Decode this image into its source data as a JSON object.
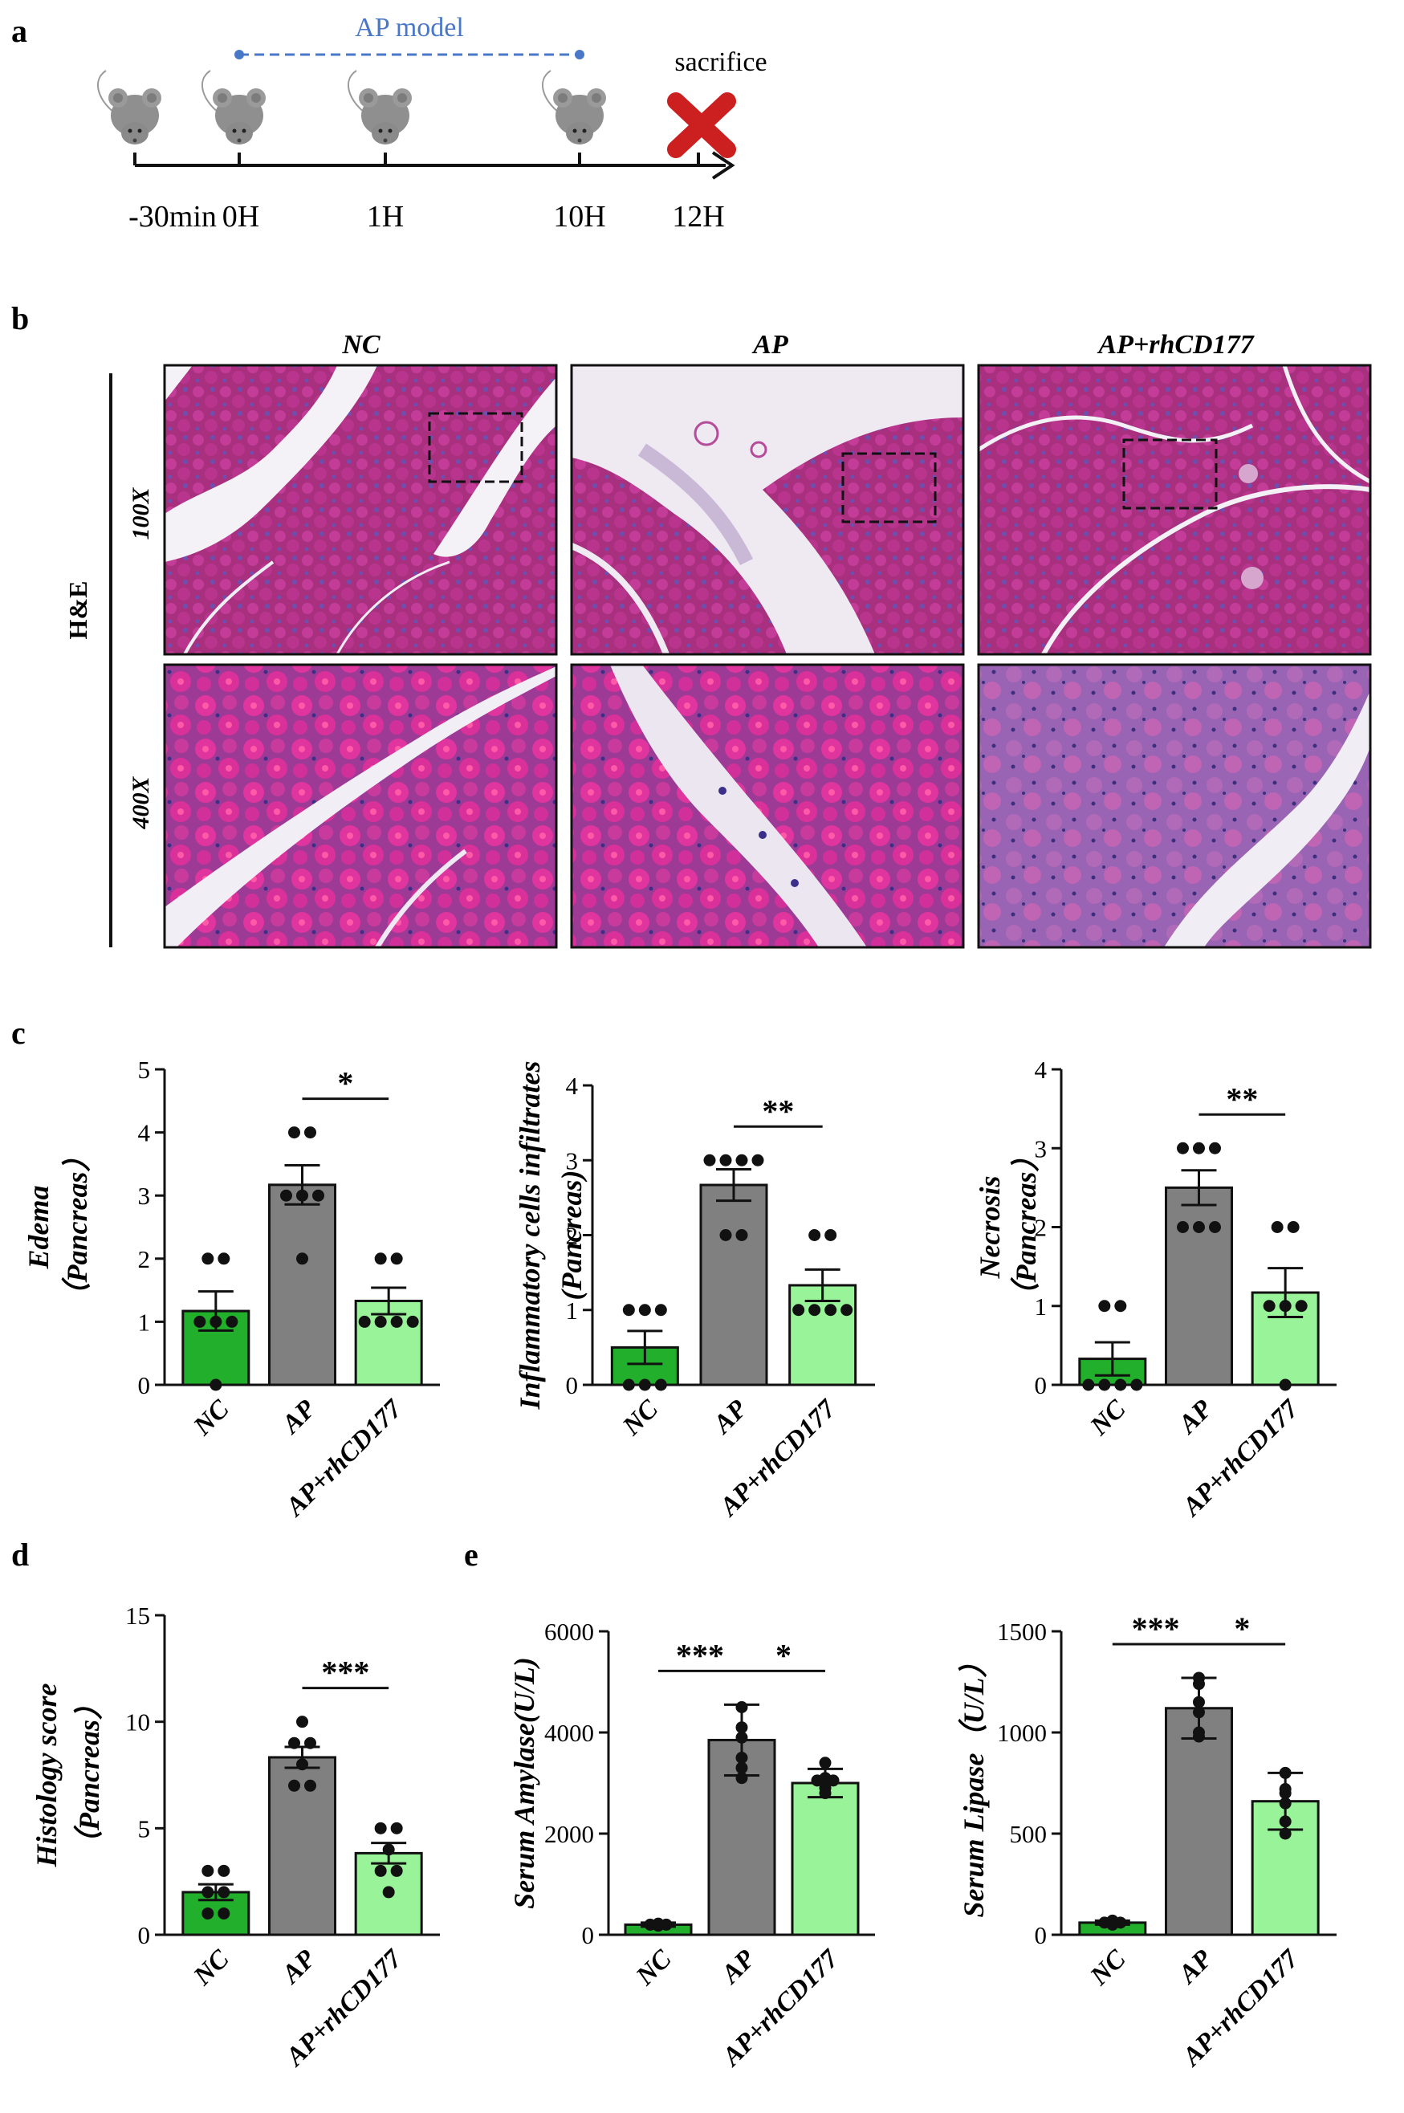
{
  "panels": {
    "a": "a",
    "b": "b",
    "c": "c",
    "d": "d",
    "e": "e"
  },
  "timeline": {
    "model_label": "AP model",
    "sacrifice_label": "sacrifice",
    "times": [
      "-30min",
      "0H",
      "1H",
      "10H",
      "12H"
    ],
    "colors": {
      "model": "#4a78c8",
      "cross": "#cc1f1f",
      "mouse": "#8f8f8f"
    }
  },
  "histology": {
    "stain_label": "H&E",
    "columns": [
      "NC",
      "AP",
      "AP+rhCD177"
    ],
    "rows": [
      "100X",
      "400X"
    ]
  },
  "colors": {
    "NC": "#22b02c",
    "AP": "#808080",
    "AP+rhCD177": "#99f399"
  },
  "chart_data": [
    {
      "type": "bar",
      "panel": "c",
      "title": "",
      "ylabel": "Edema",
      "ylabel2": "（Pancreas）",
      "categories": [
        "NC",
        "AP",
        "AP+rhCD177"
      ],
      "values": [
        1.17,
        3.17,
        1.33
      ],
      "errors": [
        0.31,
        0.31,
        0.21
      ],
      "points": [
        [
          2,
          2,
          1,
          1,
          1,
          0
        ],
        [
          4,
          4,
          3,
          3,
          3,
          2
        ],
        [
          2,
          2,
          1,
          1,
          1,
          1
        ]
      ],
      "ylim": [
        0,
        5
      ],
      "yticks": [
        "0",
        "1",
        "2",
        "3",
        "4",
        "5"
      ],
      "significance": [
        {
          "from": 1,
          "to": 2,
          "label": "*"
        }
      ]
    },
    {
      "type": "bar",
      "panel": "c",
      "title": "",
      "ylabel": "Inflammatory cells infiltrates",
      "ylabel2": "(Pancreas)",
      "categories": [
        "NC",
        "AP",
        "AP+rhCD177"
      ],
      "values": [
        0.5,
        2.67,
        1.33
      ],
      "errors": [
        0.22,
        0.21,
        0.21
      ],
      "points": [
        [
          1,
          1,
          1,
          0,
          0,
          0
        ],
        [
          3,
          3,
          3,
          3,
          2,
          2
        ],
        [
          2,
          2,
          1,
          1,
          1,
          1
        ]
      ],
      "ylim": [
        0,
        4
      ],
      "yticks": [
        "0",
        "1",
        "2",
        "3",
        "4"
      ],
      "significance": [
        {
          "from": 1,
          "to": 2,
          "label": "**"
        }
      ]
    },
    {
      "type": "bar",
      "panel": "c",
      "title": "",
      "ylabel": "Necrosis",
      "ylabel2": "（Pancreas）",
      "categories": [
        "NC",
        "AP",
        "AP+rhCD177"
      ],
      "values": [
        0.33,
        2.5,
        1.17
      ],
      "errors": [
        0.21,
        0.22,
        0.31
      ],
      "points": [
        [
          1,
          1,
          0,
          0,
          0,
          0
        ],
        [
          3,
          3,
          3,
          2,
          2,
          2
        ],
        [
          2,
          2,
          1,
          1,
          1,
          0
        ]
      ],
      "ylim": [
        0,
        4
      ],
      "yticks": [
        "0",
        "1",
        "2",
        "3",
        "4"
      ],
      "significance": [
        {
          "from": 1,
          "to": 2,
          "label": "**"
        }
      ]
    },
    {
      "type": "bar",
      "panel": "d",
      "title": "",
      "ylabel": "Histology score",
      "ylabel2": "（Pancreas）",
      "categories": [
        "NC",
        "AP",
        "AP+rhCD177"
      ],
      "values": [
        2.0,
        8.33,
        3.83
      ],
      "errors": [
        0.37,
        0.49,
        0.48
      ],
      "points": [
        [
          3,
          3,
          2,
          2,
          1,
          1
        ],
        [
          10,
          9,
          9,
          8,
          7,
          7
        ],
        [
          5,
          5,
          4,
          3,
          3,
          2
        ]
      ],
      "ylim": [
        0,
        15
      ],
      "yticks": [
        "0",
        "5",
        "10",
        "15"
      ],
      "significance": [
        {
          "from": 1,
          "to": 2,
          "label": "***"
        }
      ]
    },
    {
      "type": "bar",
      "panel": "e",
      "title": "",
      "ylabel": "Serum Amylase(U/L)",
      "ylabel2": "",
      "categories": [
        "NC",
        "AP",
        "AP+rhCD177"
      ],
      "values": [
        200,
        3850,
        3000
      ],
      "errors": [
        40,
        700,
        280
      ],
      "points": [
        [
          220,
          200,
          190,
          180,
          200,
          210
        ],
        [
          4500,
          4100,
          3900,
          3500,
          3300,
          3100
        ],
        [
          3400,
          3100,
          3050,
          2900,
          2800,
          3050
        ]
      ],
      "ylim": [
        0,
        6000
      ],
      "yticks": [
        "0",
        "2000",
        "4000",
        "6000"
      ],
      "significance": [
        {
          "from": 0,
          "to": 1,
          "label": "***"
        },
        {
          "from": 1,
          "to": 2,
          "label": "*"
        }
      ]
    },
    {
      "type": "bar",
      "panel": "e",
      "title": "",
      "ylabel": "Serum Lipase（U/L）",
      "ylabel2": "",
      "categories": [
        "NC",
        "AP",
        "AP+rhCD177"
      ],
      "values": [
        60,
        1120,
        660
      ],
      "errors": [
        10,
        150,
        140
      ],
      "points": [
        [
          70,
          60,
          55,
          65,
          50,
          60
        ],
        [
          1270,
          1240,
          1150,
          1100,
          1000,
          980
        ],
        [
          800,
          720,
          700,
          650,
          560,
          500
        ]
      ],
      "ylim": [
        0,
        1500
      ],
      "yticks": [
        "0",
        "500",
        "1000",
        "1500"
      ],
      "significance": [
        {
          "from": 0,
          "to": 1,
          "label": "***"
        },
        {
          "from": 1,
          "to": 2,
          "label": "*"
        }
      ]
    }
  ]
}
